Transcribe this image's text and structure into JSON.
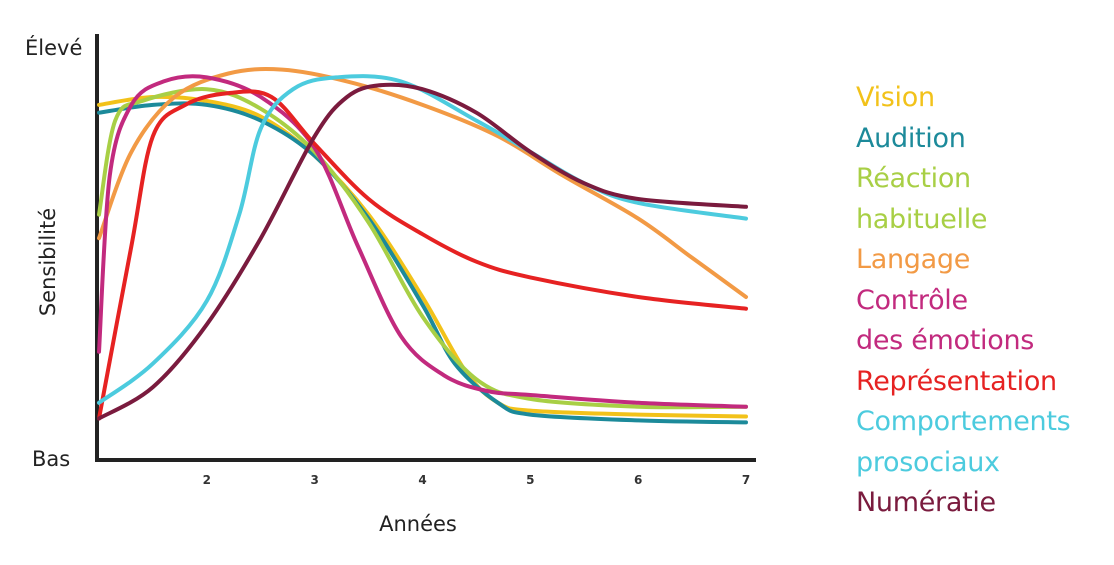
{
  "chart_data": {
    "type": "line",
    "title": "",
    "xlabel": "Années",
    "ylabel": "Sensibilité",
    "y_top_label": "Élevé",
    "y_bottom_label": "Bas",
    "xlim": [
      1,
      7
    ],
    "ylim": [
      0,
      1
    ],
    "x_ticks": [
      2,
      3,
      4,
      5,
      6,
      7
    ],
    "grid": false,
    "legend_position": "right",
    "series": [
      {
        "name": "Vision",
        "color": "#f2c21a",
        "points": [
          [
            1,
            0.86
          ],
          [
            1.5,
            0.88
          ],
          [
            2,
            0.87
          ],
          [
            2.5,
            0.83
          ],
          [
            3,
            0.73
          ],
          [
            3.5,
            0.58
          ],
          [
            4,
            0.37
          ],
          [
            4.4,
            0.18
          ],
          [
            4.7,
            0.1
          ],
          [
            5,
            0.08
          ],
          [
            6,
            0.07
          ],
          [
            7,
            0.065
          ]
        ]
      },
      {
        "name": "Audition",
        "color": "#1c8a9a",
        "points": [
          [
            1,
            0.84
          ],
          [
            1.5,
            0.86
          ],
          [
            2,
            0.86
          ],
          [
            2.5,
            0.82
          ],
          [
            3,
            0.73
          ],
          [
            3.5,
            0.57
          ],
          [
            4,
            0.35
          ],
          [
            4.3,
            0.2
          ],
          [
            4.7,
            0.1
          ],
          [
            5,
            0.07
          ],
          [
            6,
            0.055
          ],
          [
            7,
            0.05
          ]
        ]
      },
      {
        "name": "Réaction\nhabituelle",
        "color": "#a8cf45",
        "points": [
          [
            1,
            0.58
          ],
          [
            1.15,
            0.82
          ],
          [
            1.4,
            0.87
          ],
          [
            2,
            0.9
          ],
          [
            2.5,
            0.85
          ],
          [
            3,
            0.74
          ],
          [
            3.5,
            0.56
          ],
          [
            4,
            0.32
          ],
          [
            4.5,
            0.16
          ],
          [
            5,
            0.11
          ],
          [
            6,
            0.09
          ],
          [
            7,
            0.09
          ]
        ]
      },
      {
        "name": "Langage",
        "color": "#f29a45",
        "points": [
          [
            1,
            0.52
          ],
          [
            1.3,
            0.74
          ],
          [
            1.7,
            0.88
          ],
          [
            2.2,
            0.94
          ],
          [
            2.7,
            0.95
          ],
          [
            3.3,
            0.92
          ],
          [
            4,
            0.86
          ],
          [
            4.7,
            0.78
          ],
          [
            5.3,
            0.68
          ],
          [
            6,
            0.57
          ],
          [
            6.5,
            0.47
          ],
          [
            7,
            0.37
          ]
        ]
      },
      {
        "name": "Contrôle\ndes émotions",
        "color": "#c22a7e",
        "points": [
          [
            1,
            0.23
          ],
          [
            1.1,
            0.68
          ],
          [
            1.3,
            0.86
          ],
          [
            1.6,
            0.92
          ],
          [
            2,
            0.93
          ],
          [
            2.5,
            0.88
          ],
          [
            3,
            0.75
          ],
          [
            3.4,
            0.5
          ],
          [
            3.8,
            0.27
          ],
          [
            4.2,
            0.17
          ],
          [
            4.6,
            0.13
          ],
          [
            5,
            0.12
          ],
          [
            6,
            0.1
          ],
          [
            7,
            0.09
          ]
        ]
      },
      {
        "name": "Représentation",
        "color": "#e62222",
        "points": [
          [
            1,
            0.06
          ],
          [
            1.3,
            0.5
          ],
          [
            1.5,
            0.78
          ],
          [
            1.8,
            0.86
          ],
          [
            2.2,
            0.89
          ],
          [
            2.6,
            0.88
          ],
          [
            3,
            0.76
          ],
          [
            3.5,
            0.62
          ],
          [
            4,
            0.53
          ],
          [
            4.5,
            0.46
          ],
          [
            5,
            0.42
          ],
          [
            6,
            0.37
          ],
          [
            7,
            0.34
          ]
        ]
      },
      {
        "name": "Comportements\nprosociaux",
        "color": "#4ccbde",
        "points": [
          [
            1,
            0.1
          ],
          [
            1.5,
            0.2
          ],
          [
            2,
            0.36
          ],
          [
            2.3,
            0.58
          ],
          [
            2.5,
            0.8
          ],
          [
            2.8,
            0.9
          ],
          [
            3.2,
            0.93
          ],
          [
            3.8,
            0.92
          ],
          [
            4.5,
            0.82
          ],
          [
            5,
            0.74
          ],
          [
            5.5,
            0.66
          ],
          [
            6,
            0.61
          ],
          [
            7,
            0.57
          ]
        ]
      },
      {
        "name": "Numératie",
        "color": "#7a1b3e",
        "points": [
          [
            1,
            0.06
          ],
          [
            1.5,
            0.14
          ],
          [
            2,
            0.3
          ],
          [
            2.5,
            0.52
          ],
          [
            3,
            0.78
          ],
          [
            3.3,
            0.88
          ],
          [
            3.6,
            0.91
          ],
          [
            4,
            0.9
          ],
          [
            4.5,
            0.84
          ],
          [
            5,
            0.74
          ],
          [
            5.5,
            0.66
          ],
          [
            6,
            0.62
          ],
          [
            7,
            0.6
          ]
        ]
      }
    ]
  }
}
